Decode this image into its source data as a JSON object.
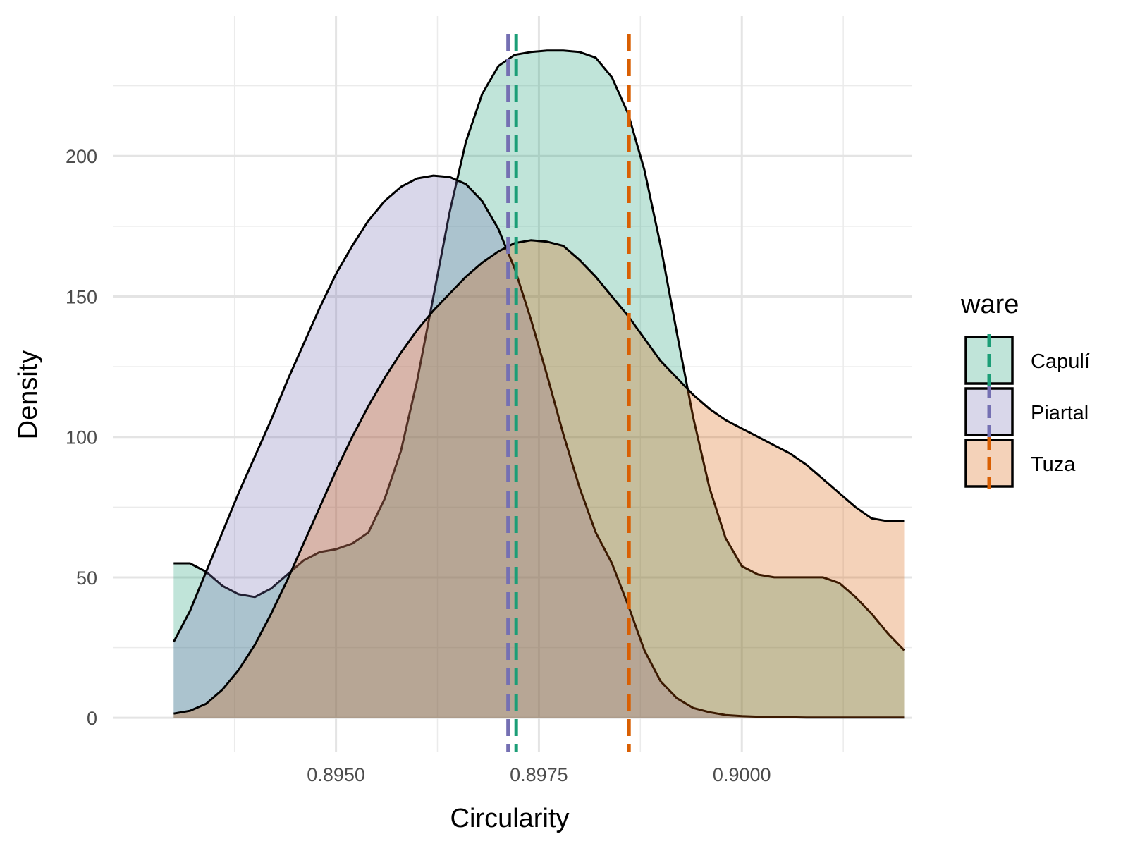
{
  "chart_data": {
    "type": "area",
    "title": "",
    "xlabel": "Circularity",
    "ylabel": "Density",
    "xlim": [
      0.89225,
      0.9021
    ],
    "ylim": [
      -12,
      250
    ],
    "x_ticks": [
      0.895,
      0.8975,
      0.9
    ],
    "x_tick_labels": [
      "0.8950",
      "0.8975",
      "0.9000"
    ],
    "x_minor_ticks": [
      0.89375,
      0.89625,
      0.89875,
      0.90125
    ],
    "y_ticks": [
      0,
      50,
      100,
      150,
      200
    ],
    "y_tick_labels": [
      "0",
      "50",
      "100",
      "150",
      "200"
    ],
    "y_minor_ticks": [
      25,
      75,
      125,
      175,
      225
    ],
    "grid": true,
    "legend": {
      "title": "ware",
      "position": "right"
    },
    "x_range": [
      0.893,
      0.902
    ],
    "series": [
      {
        "name": "Capulí",
        "fill": "#1b9e77",
        "line_color": "#1b9e77",
        "mean": 0.89722,
        "points": [
          [
            0.893,
            55
          ],
          [
            0.8932,
            55
          ],
          [
            0.8934,
            52
          ],
          [
            0.8936,
            47
          ],
          [
            0.8938,
            44
          ],
          [
            0.894,
            43
          ],
          [
            0.8942,
            46
          ],
          [
            0.8944,
            51
          ],
          [
            0.8946,
            56
          ],
          [
            0.8948,
            59
          ],
          [
            0.895,
            60
          ],
          [
            0.8952,
            62
          ],
          [
            0.8954,
            66
          ],
          [
            0.8956,
            78
          ],
          [
            0.8958,
            95
          ],
          [
            0.896,
            120
          ],
          [
            0.8962,
            150
          ],
          [
            0.8964,
            180
          ],
          [
            0.8966,
            205
          ],
          [
            0.8968,
            222
          ],
          [
            0.897,
            232
          ],
          [
            0.8972,
            236
          ],
          [
            0.8974,
            237
          ],
          [
            0.8976,
            237.5
          ],
          [
            0.8978,
            237.5
          ],
          [
            0.898,
            237
          ],
          [
            0.8982,
            235
          ],
          [
            0.8984,
            228
          ],
          [
            0.8986,
            215
          ],
          [
            0.8988,
            195
          ],
          [
            0.899,
            168
          ],
          [
            0.8992,
            137
          ],
          [
            0.8994,
            107
          ],
          [
            0.8996,
            82
          ],
          [
            0.8998,
            64
          ],
          [
            0.9,
            54
          ],
          [
            0.9002,
            51
          ],
          [
            0.9004,
            50
          ],
          [
            0.9006,
            50
          ],
          [
            0.9008,
            50
          ],
          [
            0.901,
            50
          ],
          [
            0.9012,
            48
          ],
          [
            0.9014,
            43
          ],
          [
            0.9016,
            37
          ],
          [
            0.9018,
            30
          ],
          [
            0.902,
            24
          ]
        ]
      },
      {
        "name": "Piartal",
        "fill": "#7570b3",
        "line_color": "#7570b3",
        "mean": 0.89712,
        "points": [
          [
            0.893,
            27
          ],
          [
            0.8932,
            38
          ],
          [
            0.8934,
            52
          ],
          [
            0.8936,
            66
          ],
          [
            0.8938,
            80
          ],
          [
            0.894,
            93
          ],
          [
            0.8942,
            106
          ],
          [
            0.8944,
            120
          ],
          [
            0.8946,
            133
          ],
          [
            0.8948,
            146
          ],
          [
            0.895,
            158
          ],
          [
            0.8952,
            168
          ],
          [
            0.8954,
            177
          ],
          [
            0.8956,
            184
          ],
          [
            0.8958,
            189
          ],
          [
            0.896,
            192
          ],
          [
            0.8962,
            193
          ],
          [
            0.8964,
            192.5
          ],
          [
            0.8966,
            190
          ],
          [
            0.8968,
            184
          ],
          [
            0.897,
            174
          ],
          [
            0.8972,
            160
          ],
          [
            0.8974,
            142
          ],
          [
            0.8976,
            122
          ],
          [
            0.8978,
            101
          ],
          [
            0.898,
            82
          ],
          [
            0.8982,
            66
          ],
          [
            0.8984,
            55
          ],
          [
            0.8986,
            40
          ],
          [
            0.8988,
            24
          ],
          [
            0.899,
            13
          ],
          [
            0.8992,
            7
          ],
          [
            0.8994,
            3.5
          ],
          [
            0.8996,
            2
          ],
          [
            0.8998,
            1
          ],
          [
            0.9,
            0.6
          ],
          [
            0.9002,
            0.4
          ],
          [
            0.9004,
            0.3
          ],
          [
            0.9006,
            0.2
          ],
          [
            0.9008,
            0.1
          ],
          [
            0.901,
            0.1
          ],
          [
            0.9012,
            0.1
          ],
          [
            0.9014,
            0.1
          ],
          [
            0.9016,
            0.1
          ],
          [
            0.9018,
            0.1
          ],
          [
            0.902,
            0.1
          ]
        ]
      },
      {
        "name": "Tuza",
        "fill": "#d95f02",
        "line_color": "#d95f02",
        "mean": 0.89861,
        "points": [
          [
            0.893,
            1.5
          ],
          [
            0.8932,
            2.5
          ],
          [
            0.8934,
            5
          ],
          [
            0.8936,
            10
          ],
          [
            0.8938,
            17
          ],
          [
            0.894,
            26
          ],
          [
            0.8942,
            37
          ],
          [
            0.8944,
            49
          ],
          [
            0.8946,
            62
          ],
          [
            0.8948,
            75
          ],
          [
            0.895,
            88
          ],
          [
            0.8952,
            100
          ],
          [
            0.8954,
            111
          ],
          [
            0.8956,
            121
          ],
          [
            0.8958,
            130
          ],
          [
            0.896,
            138
          ],
          [
            0.8962,
            145
          ],
          [
            0.8964,
            151
          ],
          [
            0.8966,
            157
          ],
          [
            0.8968,
            162
          ],
          [
            0.897,
            166
          ],
          [
            0.8972,
            169
          ],
          [
            0.8974,
            170
          ],
          [
            0.8976,
            169.5
          ],
          [
            0.8978,
            168
          ],
          [
            0.898,
            163
          ],
          [
            0.8982,
            157
          ],
          [
            0.8984,
            150
          ],
          [
            0.8986,
            143
          ],
          [
            0.8988,
            135
          ],
          [
            0.899,
            127
          ],
          [
            0.8992,
            121
          ],
          [
            0.8994,
            115
          ],
          [
            0.8996,
            110
          ],
          [
            0.8998,
            106
          ],
          [
            0.9,
            103
          ],
          [
            0.9002,
            100
          ],
          [
            0.9004,
            97
          ],
          [
            0.9006,
            94
          ],
          [
            0.9008,
            90
          ],
          [
            0.901,
            85
          ],
          [
            0.9012,
            80
          ],
          [
            0.9014,
            75
          ],
          [
            0.9016,
            71
          ],
          [
            0.9018,
            70
          ],
          [
            0.902,
            70
          ]
        ]
      }
    ]
  }
}
